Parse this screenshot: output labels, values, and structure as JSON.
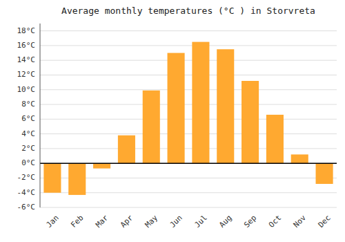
{
  "chart_data": {
    "type": "bar",
    "title": "Average monthly temperatures (°C ) in Storvreta",
    "categories": [
      "Jan",
      "Feb",
      "Mar",
      "Apr",
      "May",
      "Jun",
      "Jul",
      "Aug",
      "Sep",
      "Oct",
      "Nov",
      "Dec"
    ],
    "values": [
      -4.0,
      -4.3,
      -0.7,
      3.8,
      9.9,
      15.0,
      16.5,
      15.5,
      11.2,
      6.6,
      1.2,
      -2.8
    ],
    "color": "#FFA930",
    "ylim": [
      -6,
      19
    ],
    "yticks": [
      {
        "value": -6,
        "label": "-6°C"
      },
      {
        "value": -4,
        "label": "-4°C"
      },
      {
        "value": -2,
        "label": "-2°C"
      },
      {
        "value": 0,
        "label": "0°C"
      },
      {
        "value": 2,
        "label": "2°C"
      },
      {
        "value": 4,
        "label": "4°C"
      },
      {
        "value": 6,
        "label": "6°C"
      },
      {
        "value": 8,
        "label": "8°C"
      },
      {
        "value": 10,
        "label": "10°C"
      },
      {
        "value": 12,
        "label": "12°C"
      },
      {
        "value": 14,
        "label": "14°C"
      },
      {
        "value": 16,
        "label": "16°C"
      },
      {
        "value": 18,
        "label": "18°C"
      }
    ],
    "grid": true
  }
}
